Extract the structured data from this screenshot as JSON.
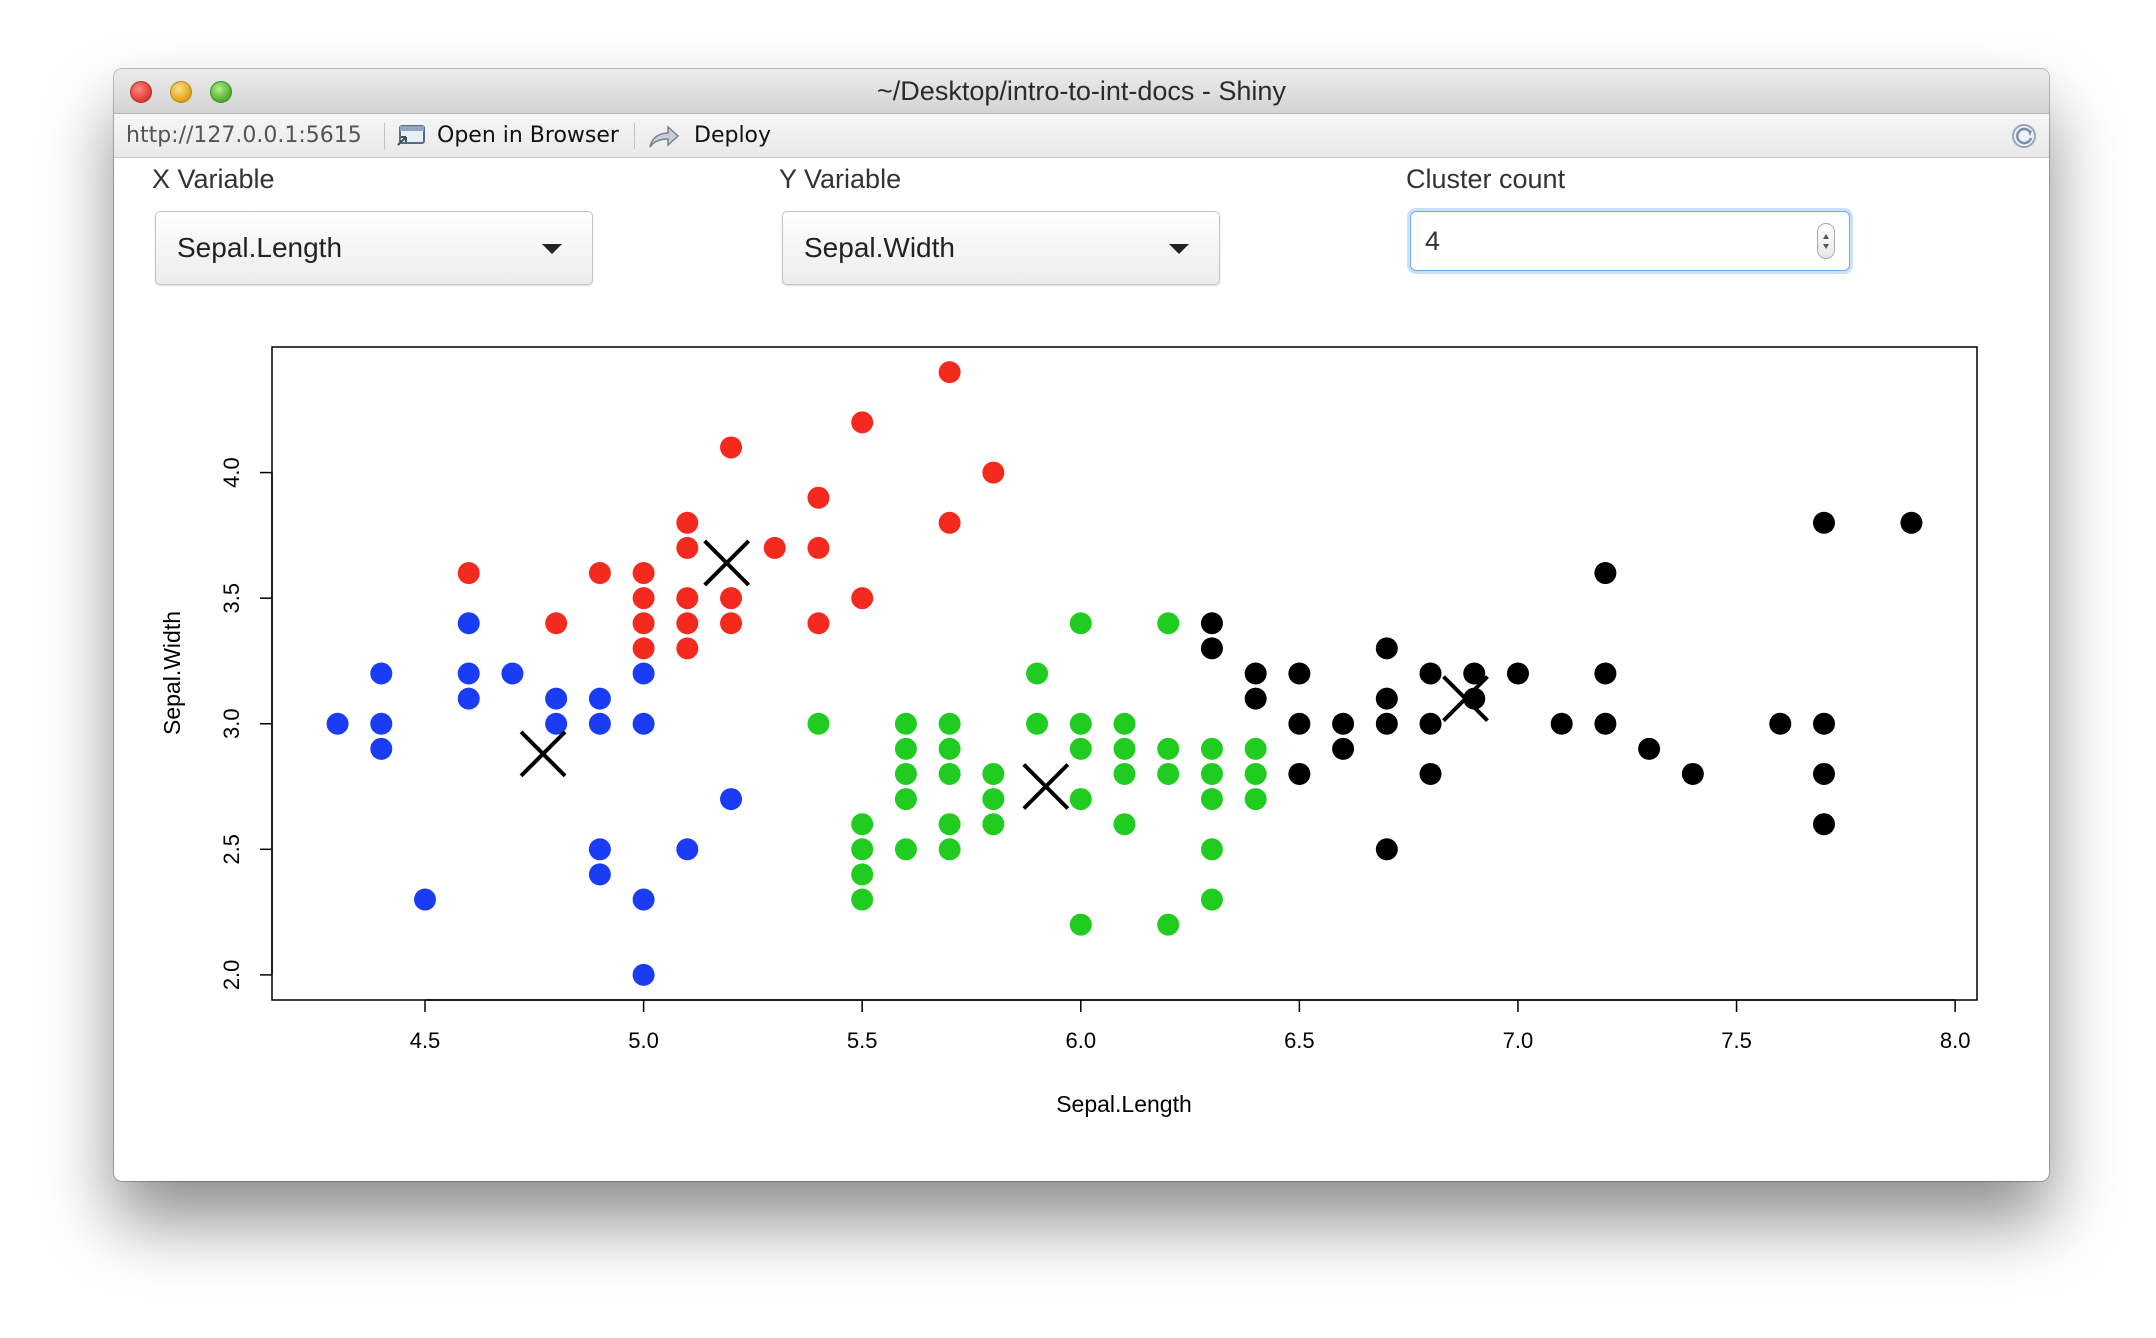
{
  "window": {
    "title": "~/Desktop/intro-to-int-docs - Shiny"
  },
  "toolbar": {
    "url": "http://127.0.0.1:5615",
    "open_in_browser": "Open in Browser",
    "deploy": "Deploy"
  },
  "controls": {
    "x_variable": {
      "label": "X Variable",
      "value": "Sepal.Length"
    },
    "y_variable": {
      "label": "Y Variable",
      "value": "Sepal.Width"
    },
    "cluster_count": {
      "label": "Cluster count",
      "value": "4"
    }
  },
  "chart_data": {
    "type": "scatter",
    "xlabel": "Sepal.Length",
    "ylabel": "Sepal.Width",
    "xlim": [
      4.15,
      8.05
    ],
    "ylim": [
      1.9,
      4.5
    ],
    "xticks": [
      "4.5",
      "5.0",
      "5.5",
      "6.0",
      "6.5",
      "7.0",
      "7.5",
      "8.0"
    ],
    "yticks": [
      "2.0",
      "2.5",
      "3.0",
      "3.5",
      "4.0"
    ],
    "grid": false,
    "legend": "none",
    "series": [
      {
        "color": "#1a3cf5",
        "points": [
          [
            4.3,
            3.0
          ],
          [
            4.4,
            3.2
          ],
          [
            4.4,
            3.0
          ],
          [
            4.4,
            2.9
          ],
          [
            4.5,
            2.3
          ],
          [
            4.6,
            3.4
          ],
          [
            4.6,
            3.2
          ],
          [
            4.6,
            3.1
          ],
          [
            4.7,
            3.2
          ],
          [
            4.8,
            3.1
          ],
          [
            4.8,
            3.0
          ],
          [
            4.9,
            3.1
          ],
          [
            4.9,
            3.0
          ],
          [
            4.9,
            2.5
          ],
          [
            4.9,
            2.4
          ],
          [
            5.0,
            3.2
          ],
          [
            5.0,
            3.0
          ],
          [
            5.0,
            2.3
          ],
          [
            5.0,
            2.0
          ],
          [
            5.1,
            2.5
          ],
          [
            5.2,
            2.7
          ]
        ]
      },
      {
        "color": "#f52a1f",
        "points": [
          [
            4.6,
            3.6
          ],
          [
            4.8,
            3.4
          ],
          [
            4.9,
            3.6
          ],
          [
            5.0,
            3.6
          ],
          [
            5.0,
            3.5
          ],
          [
            5.0,
            3.4
          ],
          [
            5.0,
            3.3
          ],
          [
            5.1,
            3.8
          ],
          [
            5.1,
            3.7
          ],
          [
            5.1,
            3.5
          ],
          [
            5.1,
            3.4
          ],
          [
            5.1,
            3.3
          ],
          [
            5.2,
            4.1
          ],
          [
            5.2,
            3.5
          ],
          [
            5.2,
            3.4
          ],
          [
            5.3,
            3.7
          ],
          [
            5.4,
            3.9
          ],
          [
            5.4,
            3.7
          ],
          [
            5.4,
            3.4
          ],
          [
            5.5,
            4.2
          ],
          [
            5.5,
            3.5
          ],
          [
            5.7,
            4.4
          ],
          [
            5.7,
            3.8
          ],
          [
            5.8,
            4.0
          ]
        ]
      },
      {
        "color": "#1fcc1f",
        "points": [
          [
            5.4,
            3.0
          ],
          [
            5.5,
            2.6
          ],
          [
            5.5,
            2.5
          ],
          [
            5.5,
            2.4
          ],
          [
            5.5,
            2.3
          ],
          [
            5.6,
            3.0
          ],
          [
            5.6,
            2.9
          ],
          [
            5.6,
            2.8
          ],
          [
            5.6,
            2.7
          ],
          [
            5.6,
            2.5
          ],
          [
            5.7,
            3.0
          ],
          [
            5.7,
            2.9
          ],
          [
            5.7,
            2.8
          ],
          [
            5.7,
            2.6
          ],
          [
            5.7,
            2.5
          ],
          [
            5.8,
            2.8
          ],
          [
            5.8,
            2.7
          ],
          [
            5.8,
            2.6
          ],
          [
            5.9,
            3.2
          ],
          [
            5.9,
            3.0
          ],
          [
            6.0,
            3.4
          ],
          [
            6.0,
            3.0
          ],
          [
            6.0,
            2.9
          ],
          [
            6.0,
            2.7
          ],
          [
            6.0,
            2.2
          ],
          [
            6.1,
            3.0
          ],
          [
            6.1,
            2.9
          ],
          [
            6.1,
            2.8
          ],
          [
            6.1,
            2.6
          ],
          [
            6.2,
            3.4
          ],
          [
            6.2,
            2.9
          ],
          [
            6.2,
            2.8
          ],
          [
            6.2,
            2.2
          ],
          [
            6.3,
            2.9
          ],
          [
            6.3,
            2.8
          ],
          [
            6.3,
            2.7
          ],
          [
            6.3,
            2.5
          ],
          [
            6.3,
            2.3
          ],
          [
            6.4,
            2.9
          ],
          [
            6.4,
            2.8
          ],
          [
            6.4,
            2.7
          ]
        ]
      },
      {
        "color": "#000000",
        "points": [
          [
            6.3,
            3.4
          ],
          [
            6.3,
            3.3
          ],
          [
            6.4,
            3.2
          ],
          [
            6.4,
            3.1
          ],
          [
            6.5,
            3.2
          ],
          [
            6.5,
            3.0
          ],
          [
            6.5,
            2.8
          ],
          [
            6.6,
            3.0
          ],
          [
            6.6,
            2.9
          ],
          [
            6.7,
            3.3
          ],
          [
            6.7,
            3.1
          ],
          [
            6.7,
            3.0
          ],
          [
            6.7,
            2.5
          ],
          [
            6.8,
            3.2
          ],
          [
            6.8,
            3.0
          ],
          [
            6.8,
            2.8
          ],
          [
            6.9,
            3.2
          ],
          [
            6.9,
            3.1
          ],
          [
            7.0,
            3.2
          ],
          [
            7.1,
            3.0
          ],
          [
            7.2,
            3.6
          ],
          [
            7.2,
            3.2
          ],
          [
            7.2,
            3.0
          ],
          [
            7.3,
            2.9
          ],
          [
            7.4,
            2.8
          ],
          [
            7.6,
            3.0
          ],
          [
            7.7,
            3.8
          ],
          [
            7.7,
            3.0
          ],
          [
            7.7,
            2.8
          ],
          [
            7.7,
            2.6
          ],
          [
            7.9,
            3.8
          ]
        ]
      }
    ],
    "centers": [
      [
        4.77,
        2.88
      ],
      [
        5.19,
        3.64
      ],
      [
        5.92,
        2.75
      ],
      [
        6.88,
        3.1
      ]
    ]
  }
}
